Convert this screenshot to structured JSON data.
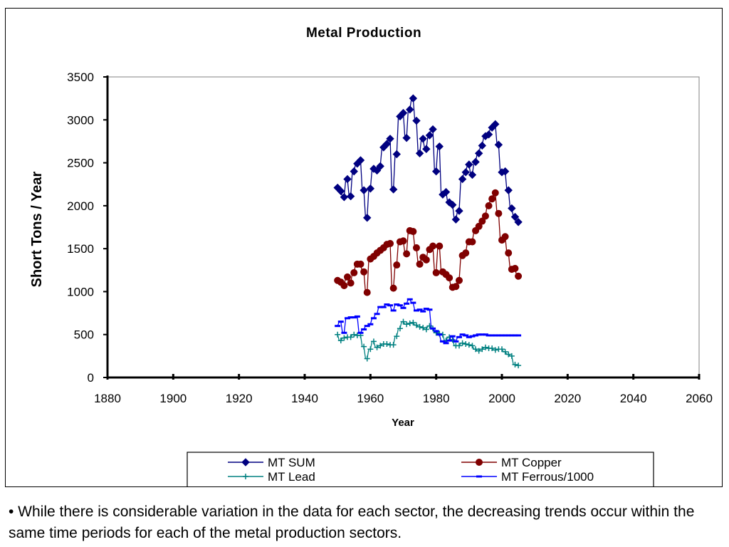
{
  "caption": "• While there is considerable variation in the data for each sector, the decreasing trends occur within the same time periods for each of the metal production sectors.",
  "chart_data": {
    "type": "line",
    "title": "Metal Production",
    "xlabel": "Year",
    "ylabel": "Short Tons / Year",
    "xlim": [
      1880,
      2060
    ],
    "ylim": [
      0,
      3500
    ],
    "xticks": [
      1880,
      1900,
      1920,
      1940,
      1960,
      1980,
      2000,
      2020,
      2040,
      2060
    ],
    "yticks": [
      0,
      500,
      1000,
      1500,
      2000,
      2500,
      3000,
      3500
    ],
    "grid": false,
    "legend_position": "bottom",
    "series": [
      {
        "name": "MT SUM",
        "color": "#000080",
        "marker": "diamond",
        "x": [
          1950,
          1951,
          1952,
          1953,
          1954,
          1955,
          1956,
          1957,
          1958,
          1959,
          1960,
          1961,
          1962,
          1963,
          1964,
          1965,
          1966,
          1967,
          1968,
          1969,
          1970,
          1971,
          1972,
          1973,
          1974,
          1975,
          1976,
          1977,
          1978,
          1979,
          1980,
          1981,
          1982,
          1983,
          1984,
          1985,
          1986,
          1987,
          1988,
          1989,
          1990,
          1991,
          1992,
          1993,
          1994,
          1995,
          1996,
          1997,
          1998,
          1999,
          2000,
          2001,
          2002,
          2003,
          2004,
          2005
        ],
        "y": [
          2210,
          2170,
          2100,
          2310,
          2110,
          2400,
          2490,
          2530,
          2180,
          1860,
          2200,
          2430,
          2410,
          2460,
          2680,
          2720,
          2780,
          2190,
          2600,
          3040,
          3080,
          2790,
          3120,
          3250,
          2990,
          2610,
          2780,
          2660,
          2820,
          2890,
          2400,
          2690,
          2130,
          2160,
          2040,
          2010,
          1840,
          1940,
          2310,
          2390,
          2480,
          2360,
          2510,
          2610,
          2700,
          2810,
          2830,
          2910,
          2950,
          2710,
          2390,
          2400,
          2180,
          1970,
          1870,
          1810
        ]
      },
      {
        "name": "MT Copper",
        "color": "#800000",
        "marker": "circle",
        "x": [
          1950,
          1951,
          1952,
          1953,
          1954,
          1955,
          1956,
          1957,
          1958,
          1959,
          1960,
          1961,
          1962,
          1963,
          1964,
          1965,
          1966,
          1967,
          1968,
          1969,
          1970,
          1971,
          1972,
          1973,
          1974,
          1975,
          1976,
          1977,
          1978,
          1979,
          1980,
          1981,
          1982,
          1983,
          1984,
          1985,
          1986,
          1987,
          1988,
          1989,
          1990,
          1991,
          1992,
          1993,
          1994,
          1995,
          1996,
          1997,
          1998,
          1999,
          2000,
          2001,
          2002,
          2003,
          2004,
          2005
        ],
        "y": [
          1130,
          1110,
          1070,
          1170,
          1100,
          1220,
          1320,
          1320,
          1230,
          990,
          1380,
          1410,
          1450,
          1480,
          1510,
          1550,
          1560,
          1040,
          1310,
          1580,
          1590,
          1440,
          1710,
          1700,
          1510,
          1320,
          1400,
          1370,
          1490,
          1530,
          1220,
          1530,
          1230,
          1200,
          1160,
          1050,
          1060,
          1130,
          1420,
          1450,
          1580,
          1580,
          1710,
          1760,
          1820,
          1880,
          2000,
          2080,
          2150,
          1910,
          1600,
          1640,
          1450,
          1260,
          1270,
          1180
        ]
      },
      {
        "name": "MT Lead",
        "color": "#008080",
        "marker": "plus",
        "x": [
          1950,
          1951,
          1952,
          1953,
          1954,
          1955,
          1956,
          1957,
          1958,
          1959,
          1960,
          1961,
          1962,
          1963,
          1964,
          1965,
          1966,
          1967,
          1968,
          1969,
          1970,
          1971,
          1972,
          1973,
          1974,
          1975,
          1976,
          1977,
          1978,
          1979,
          1980,
          1981,
          1982,
          1983,
          1984,
          1985,
          1986,
          1987,
          1988,
          1989,
          1990,
          1991,
          1992,
          1993,
          1994,
          1995,
          1996,
          1997,
          1998,
          1999,
          2000,
          2001,
          2002,
          2003,
          2004,
          2005
        ],
        "y": [
          500,
          430,
          460,
          470,
          470,
          500,
          490,
          490,
          360,
          220,
          330,
          420,
          350,
          370,
          390,
          390,
          380,
          380,
          480,
          570,
          650,
          620,
          630,
          640,
          610,
          590,
          580,
          560,
          600,
          570,
          520,
          510,
          500,
          430,
          470,
          440,
          370,
          370,
          400,
          390,
          380,
          370,
          330,
          310,
          330,
          350,
          340,
          340,
          320,
          330,
          330,
          300,
          270,
          250,
          150,
          140
        ]
      },
      {
        "name": "MT Ferrous/1000",
        "color": "#0000ff",
        "marker": "dash",
        "x": [
          1950,
          1951,
          1952,
          1953,
          1954,
          1955,
          1956,
          1957,
          1958,
          1959,
          1960,
          1961,
          1962,
          1963,
          1964,
          1965,
          1966,
          1967,
          1968,
          1969,
          1970,
          1971,
          1972,
          1973,
          1974,
          1975,
          1976,
          1977,
          1978,
          1979,
          1980,
          1981,
          1982,
          1983,
          1984,
          1985,
          1986,
          1987,
          1988,
          1989,
          1990,
          1991,
          1992,
          1993,
          1994,
          1995,
          1996,
          1997,
          1998,
          1999,
          2000,
          2001,
          2002,
          2003,
          2004,
          2005
        ],
        "y": [
          600,
          650,
          520,
          690,
          700,
          700,
          710,
          520,
          560,
          600,
          620,
          690,
          740,
          820,
          820,
          850,
          840,
          780,
          850,
          840,
          810,
          860,
          910,
          870,
          780,
          790,
          770,
          800,
          790,
          570,
          540,
          500,
          420,
          400,
          430,
          480,
          420,
          470,
          500,
          490,
          470,
          480,
          490,
          500,
          500,
          500,
          490,
          490,
          490,
          490,
          490,
          490,
          490,
          490,
          490,
          490
        ]
      }
    ]
  }
}
